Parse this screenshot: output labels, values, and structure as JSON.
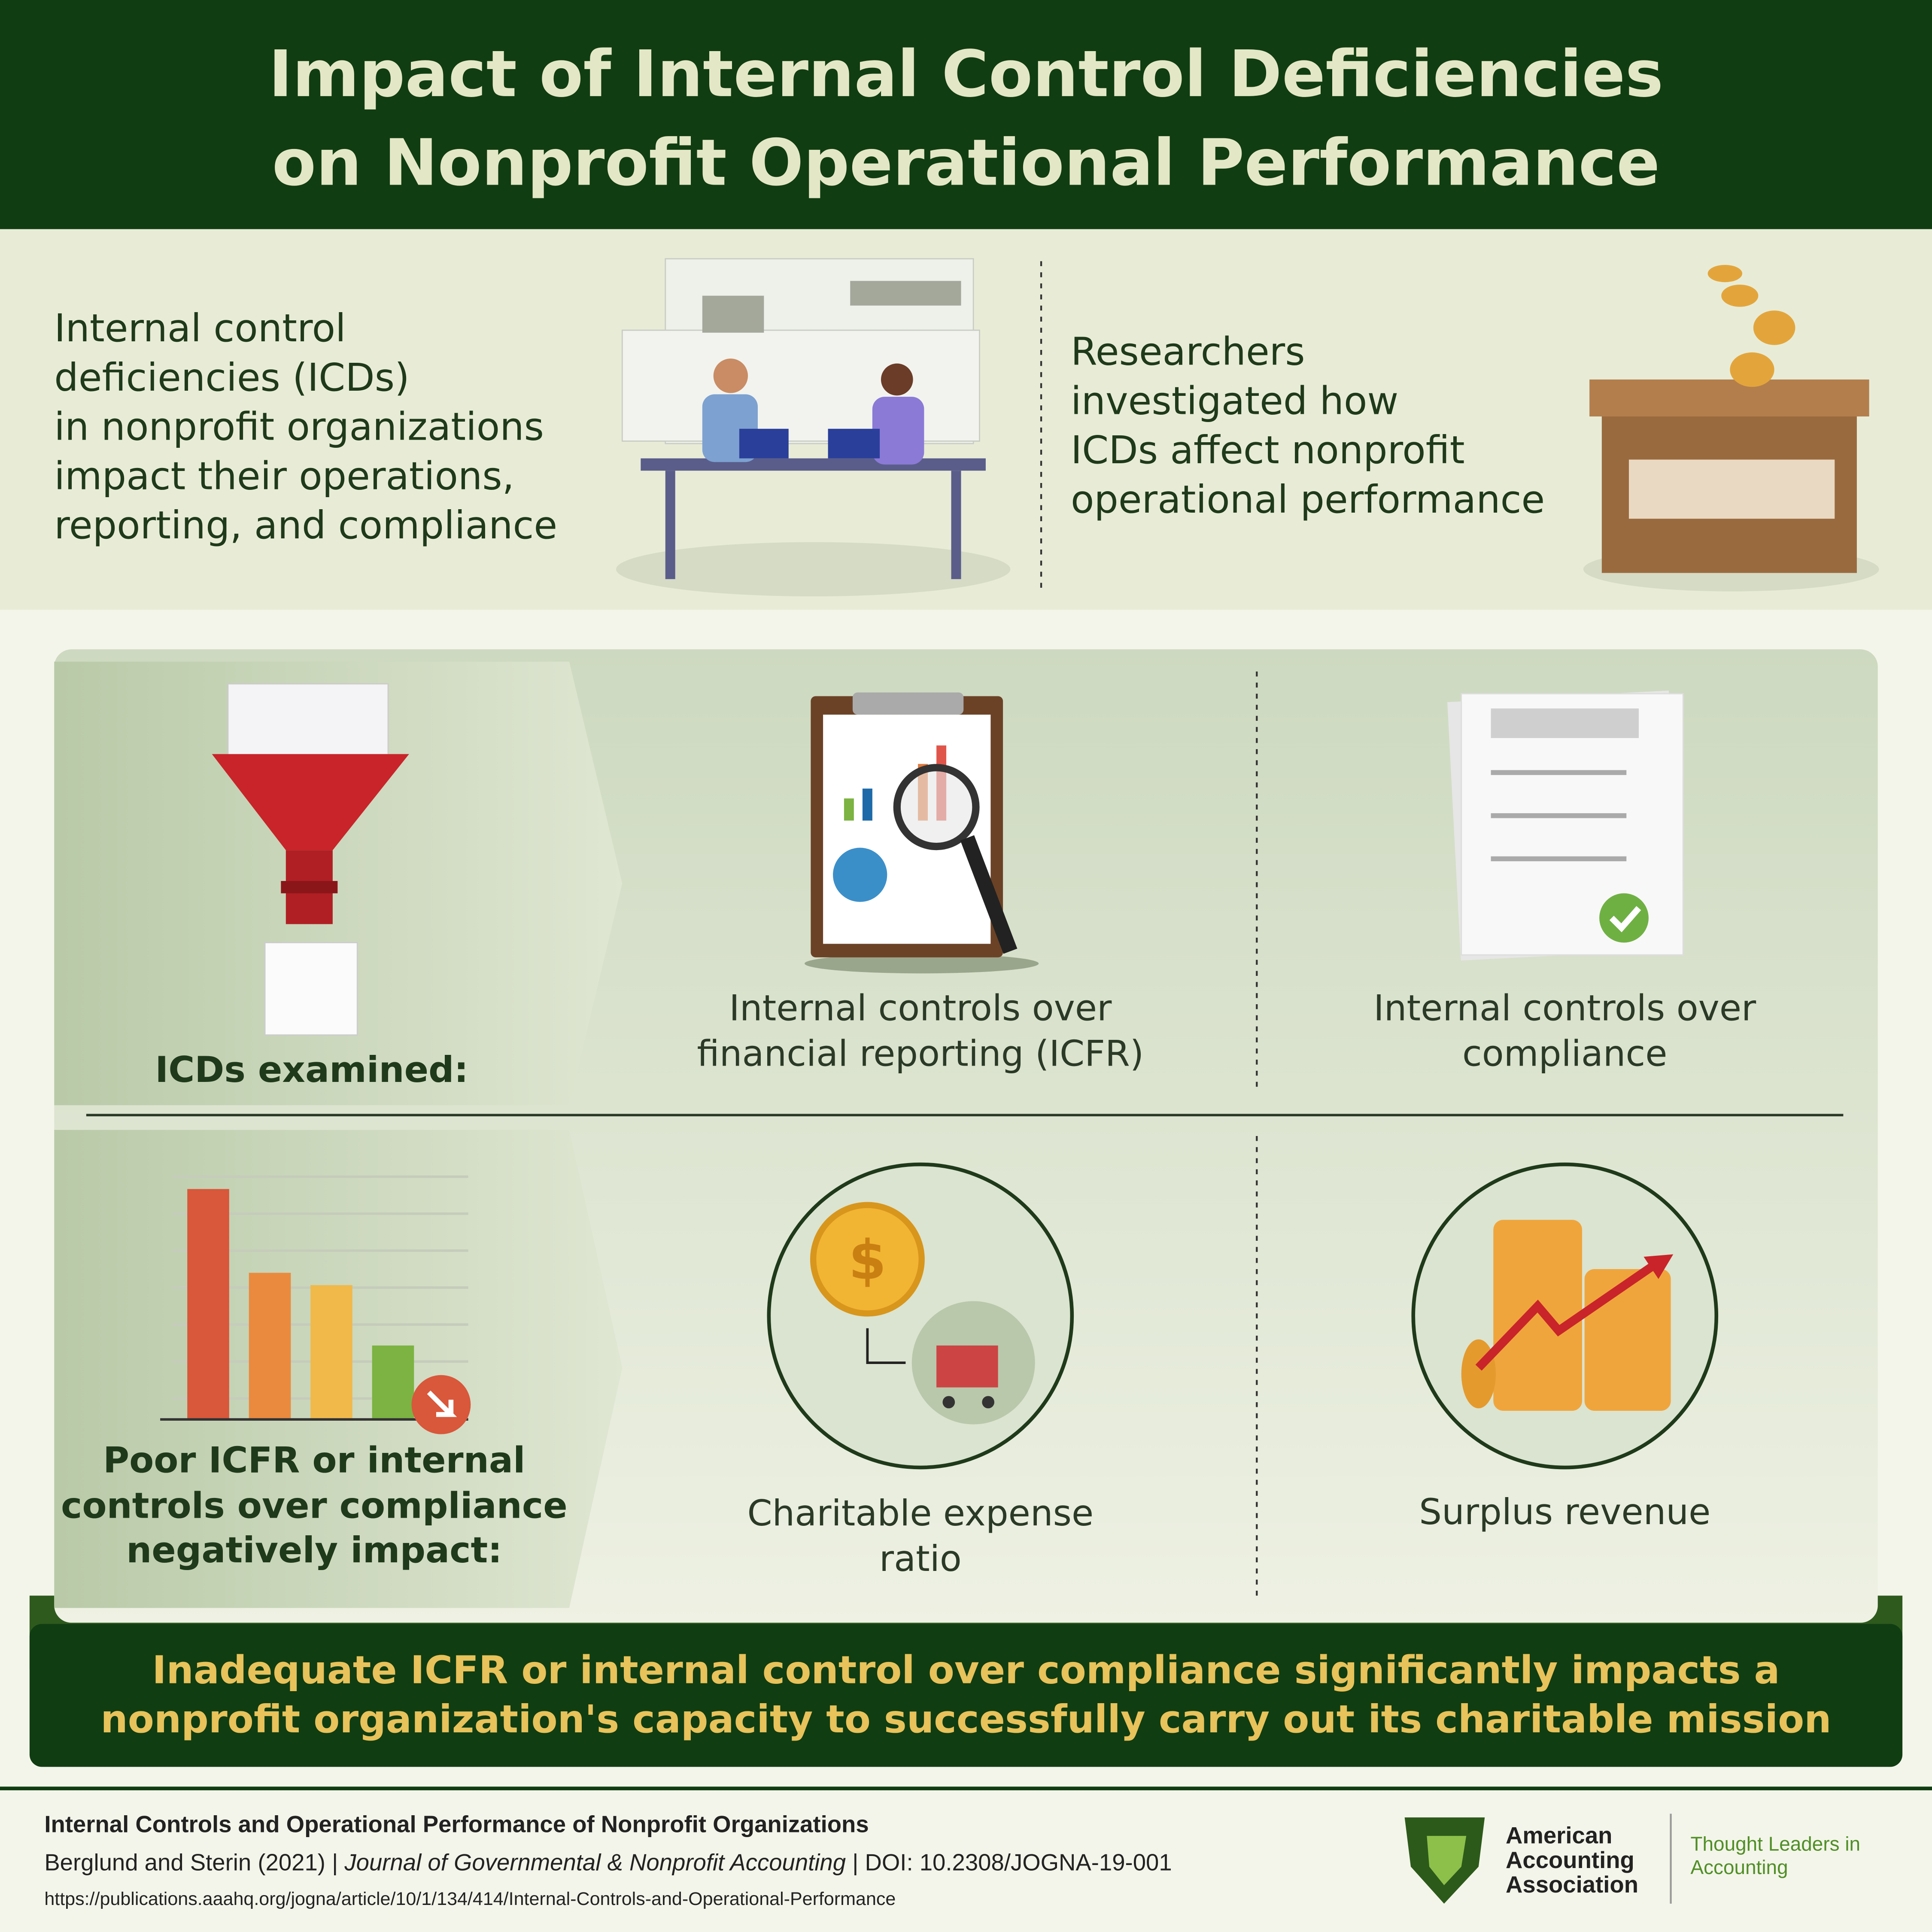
{
  "header": {
    "title": [
      "Impact of Internal Control Deficiencies",
      "on Nonprofit Operational Performance"
    ]
  },
  "intro": {
    "left_text": [
      "Internal control",
      "deficiencies (ICDs)",
      "in nonprofit organizations",
      "impact their operations,",
      "reporting, and compliance"
    ],
    "right_text": [
      "Researchers",
      "investigated how",
      "ICDs affect nonprofit",
      "operational performance"
    ]
  },
  "examined": {
    "label": "ICDs examined:",
    "items": [
      [
        "Internal controls over",
        "financial reporting (ICFR)"
      ],
      [
        "Internal controls over",
        "compliance"
      ]
    ]
  },
  "impacts": {
    "label": [
      "Poor ICFR or internal",
      "controls over compliance",
      "negatively impact:"
    ],
    "items": [
      [
        "Charitable expense",
        "ratio"
      ],
      [
        "Surplus revenue"
      ]
    ]
  },
  "conclusion": [
    "Inadequate ICFR or internal control over compliance significantly impacts a",
    "nonprofit organization's capacity to successfully carry out its charitable mission"
  ],
  "footer": {
    "title": "Internal Controls and Operational Performance of Nonprofit Organizations",
    "authors": "Berglund and Sterin (2021) |",
    "journal": "Journal of Governmental & Nonprofit Accounting",
    "doi": "| DOI: 10.2308/JOGNA-19-001",
    "url": "https://publications.aaahq.org/jogna/article/10/1/134/414/Internal-Controls-and-Operational-Performance",
    "logo": [
      "American",
      "Accounting",
      "Association"
    ],
    "tagline": [
      "Thought Leaders in",
      "Accounting"
    ]
  }
}
